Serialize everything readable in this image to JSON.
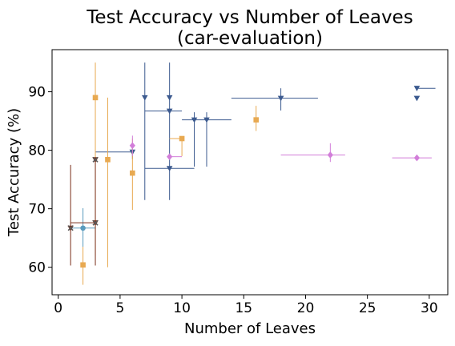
{
  "chart_data": {
    "type": "scatter",
    "title": [
      "Test Accuracy vs Number of Leaves",
      "(car-evaluation)"
    ],
    "xlabel": "Number of Leaves",
    "ylabel": "Test Accuracy (%)",
    "xlim": [
      -0.5,
      31.5
    ],
    "ylim": [
      55.3,
      97.2
    ],
    "xticks": [
      0,
      5,
      10,
      15,
      20,
      25,
      30
    ],
    "yticks": [
      60,
      70,
      80,
      90
    ],
    "grid": false,
    "series": [
      {
        "color": "#3c5a8f",
        "marker": "triangle-down",
        "points": [
          {
            "x": 7,
            "y": 89.0,
            "ylo": 71.5,
            "yhi": 95.0
          },
          {
            "x": 9,
            "y": 89.0,
            "ylo": 71.5,
            "yhi": 95.0
          },
          {
            "x": 9,
            "y": 86.7,
            "xlo": 7,
            "xhi": 10
          },
          {
            "x": 9,
            "y": 76.9,
            "xlo": 7,
            "xhi": 11
          },
          {
            "x": 11,
            "y": 85.2,
            "xlo": 10,
            "xhi": 14,
            "ylo": 77.2,
            "yhi": 86.5
          },
          {
            "x": 12,
            "y": 85.2,
            "ylo": 77.2,
            "yhi": 86.5
          },
          {
            "x": 18,
            "y": 88.9,
            "xlo": 14,
            "xhi": 21,
            "ylo": 86.8,
            "yhi": 90.6
          },
          {
            "x": 29,
            "y": 90.6,
            "xlo": 29,
            "xhi": 30.5
          },
          {
            "x": 29,
            "y": 88.9
          },
          {
            "x": 6,
            "y": 79.7,
            "xlo": 3,
            "xhi": 6,
            "ylo": 78.5,
            "yhi": 80.5
          }
        ]
      },
      {
        "color": "#e8a951",
        "marker": "square",
        "points": [
          {
            "x": 2,
            "y": 60.4,
            "ylo": 57.0,
            "yhi": 63.5
          },
          {
            "x": 3,
            "y": 89.0,
            "ylo": 62.0,
            "yhi": 95.0
          },
          {
            "x": 4,
            "y": 78.4,
            "ylo": 60.0,
            "yhi": 89.0
          },
          {
            "x": 6,
            "y": 76.1,
            "ylo": 69.8,
            "yhi": 82.0
          },
          {
            "x": 10,
            "y": 82.0,
            "xlo": 9,
            "xhi": 10,
            "ylo": 79.0,
            "yhi": 82.0
          },
          {
            "x": 16,
            "y": 85.2,
            "ylo": 83.3,
            "yhi": 87.6
          }
        ]
      },
      {
        "color": "#d27ed9",
        "marker": "diamond",
        "points": [
          {
            "x": 6,
            "y": 80.8,
            "ylo": 79.0,
            "yhi": 82.5
          },
          {
            "x": 9,
            "y": 78.9,
            "xlo": 9,
            "xhi": 10
          },
          {
            "x": 22,
            "y": 79.2,
            "xlo": 18,
            "xhi": 23.2,
            "ylo": 78.0,
            "yhi": 81.2
          },
          {
            "x": 29,
            "y": 78.7,
            "xlo": 27,
            "xhi": 30.2
          }
        ]
      },
      {
        "color": "#5a9bbd",
        "marker": "circle",
        "points": [
          {
            "x": 2,
            "y": 66.7,
            "xlo": 1,
            "xhi": 3,
            "ylo": 63.5,
            "yhi": 70.1
          }
        ]
      },
      {
        "color": "#7a2f1a",
        "marker": "triangle-down",
        "points": [
          {
            "x": 1,
            "y": 66.7,
            "ylo": 60.3,
            "yhi": 77.5
          },
          {
            "x": 3,
            "y": 78.4,
            "ylo": 60.3,
            "yhi": 78.4
          },
          {
            "x": 3,
            "y": 67.6,
            "xlo": 1,
            "xhi": 3
          }
        ]
      },
      {
        "color": "#5a5a5a",
        "marker": "x",
        "points": [
          {
            "x": 1,
            "y": 66.7
          },
          {
            "x": 3,
            "y": 78.4
          },
          {
            "x": 3,
            "y": 67.6
          }
        ]
      }
    ]
  }
}
